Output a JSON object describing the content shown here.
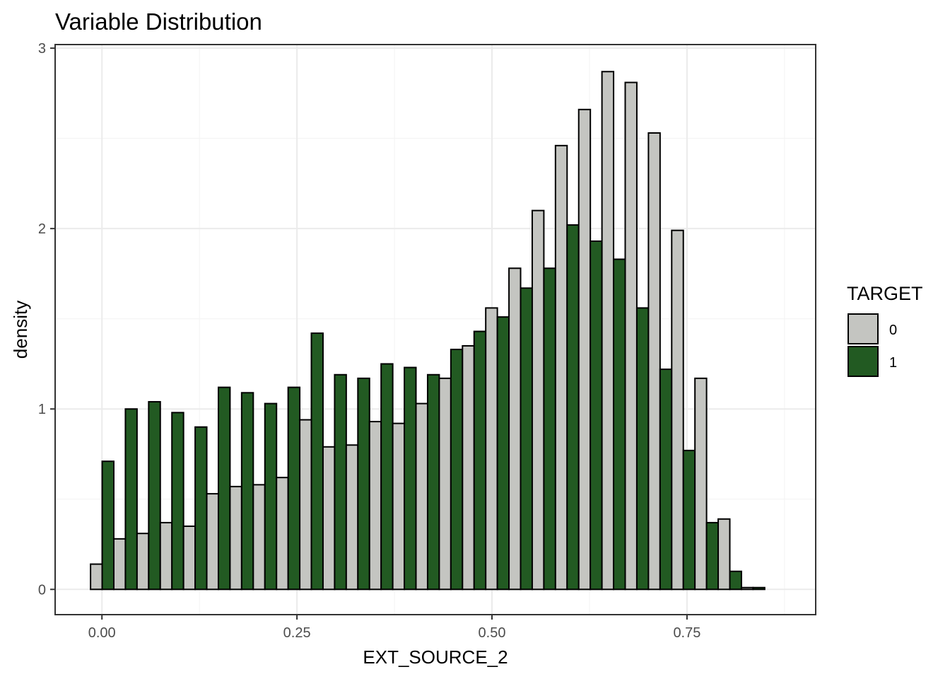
{
  "chart_data": {
    "type": "bar",
    "title": "Variable Distribution",
    "xlabel": "EXT_SOURCE_2",
    "ylabel": "density",
    "xlim": [
      -0.06,
      0.915
    ],
    "ylim": [
      -0.14,
      3.02
    ],
    "x_ticks": [
      0.0,
      0.25,
      0.5,
      0.75
    ],
    "x_tick_labels": [
      "0.00",
      "0.25",
      "0.50",
      "0.75"
    ],
    "y_ticks": [
      0,
      1,
      2,
      3
    ],
    "y_tick_labels": [
      "0",
      "1",
      "2",
      "3"
    ],
    "grid": true,
    "legend_position": "right",
    "legend": {
      "title": "TARGET",
      "entries": [
        {
          "label": "0",
          "color": "#c4c5c1"
        },
        {
          "label": "1",
          "color": "#225a22"
        }
      ]
    },
    "bin_centers": [
      0.0003,
      0.0301,
      0.0599,
      0.0897,
      0.1195,
      0.1493,
      0.1791,
      0.2089,
      0.2387,
      0.2685,
      0.2983,
      0.3281,
      0.3579,
      0.3877,
      0.4175,
      0.4473,
      0.4771,
      0.5069,
      0.5367,
      0.5665,
      0.5963,
      0.6261,
      0.6559,
      0.6857,
      0.7155,
      0.7453,
      0.7751,
      0.8049,
      0.8347
    ],
    "series": [
      {
        "name": "0",
        "color": "#c4c5c1",
        "values": [
          0.14,
          0.28,
          0.31,
          0.37,
          0.35,
          0.53,
          0.57,
          0.58,
          0.62,
          0.94,
          0.79,
          0.8,
          0.93,
          0.92,
          1.03,
          1.17,
          1.35,
          1.56,
          1.78,
          2.1,
          2.46,
          2.66,
          2.87,
          2.81,
          2.53,
          1.99,
          1.17,
          0.39,
          0.01
        ]
      },
      {
        "name": "1",
        "color": "#225a22",
        "values": [
          0.71,
          1.0,
          1.04,
          0.98,
          0.9,
          1.12,
          1.09,
          1.03,
          1.12,
          1.42,
          1.19,
          1.17,
          1.25,
          1.23,
          1.19,
          1.33,
          1.43,
          1.51,
          1.67,
          1.78,
          2.02,
          1.93,
          1.83,
          1.56,
          1.22,
          0.77,
          0.37,
          0.1,
          0.01
        ]
      }
    ]
  }
}
